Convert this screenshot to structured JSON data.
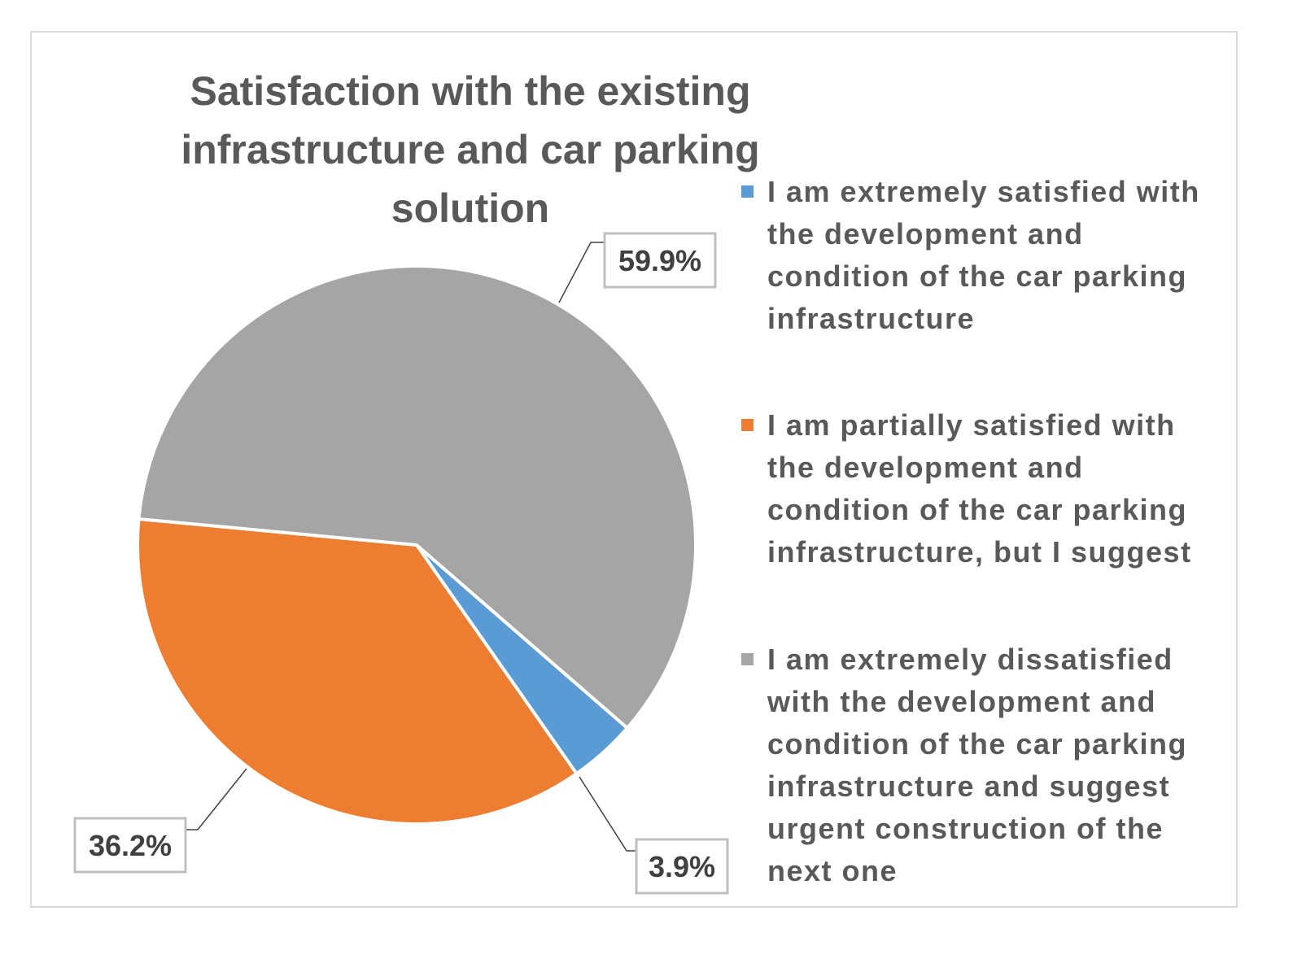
{
  "chart_data": {
    "type": "pie",
    "title": "Satisfaction with the existing infrastructure and car parking solution",
    "slices": [
      {
        "label": "I am extremely satisfied with the development and condition of the car parking infrastructure",
        "value": 3.9,
        "display": "3.9%",
        "color": "#5b9bd5"
      },
      {
        "label": "I am partially satisfied with the development and condition of the car parking infrastructure, but I suggest",
        "value": 36.2,
        "display": "36.2%",
        "color": "#ed7d31"
      },
      {
        "label": "I am extremely dissatisfied with the development and condition of the car parking infrastructure and suggest urgent construction of the next one",
        "value": 59.9,
        "display": "59.9%",
        "color": "#a5a5a5"
      }
    ],
    "legend_position": "right"
  }
}
